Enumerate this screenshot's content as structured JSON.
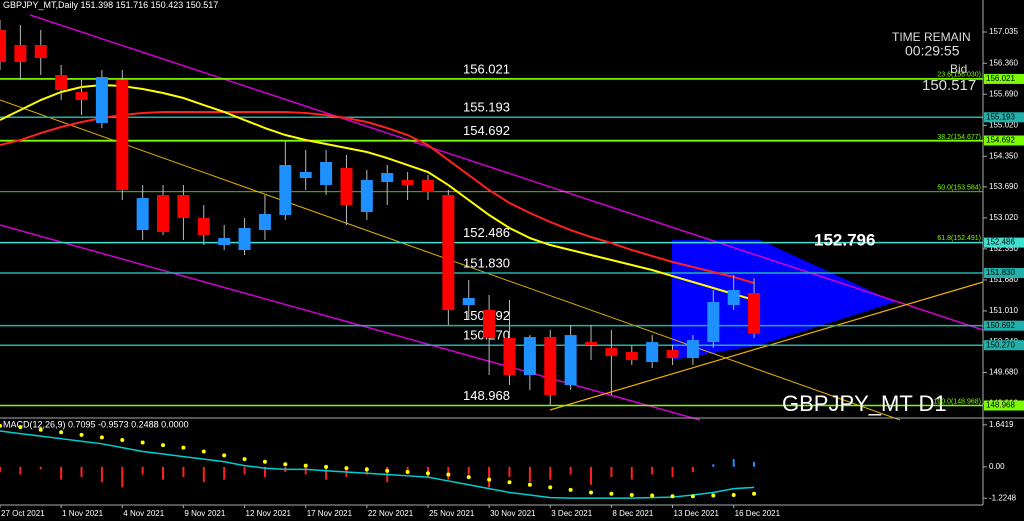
{
  "chart_data": {
    "type": "candlestick",
    "title": "GBPJPY_MT,Daily",
    "time_remain_label": "TIME REMAIN",
    "time_remain": "00:29:55",
    "bid_label": "Bid",
    "watermark": "GBPJPY_MT D1",
    "highlight_label": "152.796",
    "up_color": "#1e90ff",
    "down_color": "#ff0000",
    "categories": [
      "27 Oct 2021",
      null,
      null,
      "1 Nov 2021",
      null,
      null,
      "4 Nov 2021",
      null,
      null,
      "9 Nov 2021",
      null,
      null,
      "12 Nov 2021",
      null,
      null,
      "17 Nov 2021",
      null,
      null,
      "22 Nov 2021",
      null,
      null,
      "25 Nov 2021",
      null,
      null,
      "30 Nov 2021",
      null,
      null,
      "3 Dec 2021",
      null,
      null,
      "8 Dec 2021",
      null,
      null,
      "13 Dec 2021",
      null,
      null,
      "16 Dec 2021",
      null
    ],
    "open": [
      157.078,
      156.754,
      156.754,
      156.106,
      155.739,
      155.069,
      155.998,
      152.758,
      153.514,
      153.514,
      153.018,
      152.434,
      152.326,
      152.758,
      153.082,
      153.881,
      153.73,
      154.097,
      153.147,
      153.795,
      153.838,
      153.838,
      153.514,
      151.138,
      151.03,
      150.425,
      149.626,
      150.447,
      149.41,
      150.338,
      150.209,
      150.123,
      149.907,
      150.166,
      149.993,
      150.338,
      151.138,
      151.398
    ],
    "high": [
      157.294,
      157.186,
      157.078,
      156.322,
      155.998,
      156.214,
      156.214,
      153.73,
      153.73,
      153.73,
      153.298,
      152.866,
      153.018,
      153.514,
      154.702,
      154.486,
      154.486,
      154.378,
      154.054,
      154.162,
      154.011,
      153.946,
      153.622,
      151.678,
      151.354,
      151.246,
      150.49,
      150.598,
      150.706,
      150.706,
      150.598,
      150.274,
      150.49,
      150.274,
      150.49,
      151.462,
      151.786,
      151.716
    ],
    "low": [
      156.214,
      155.998,
      156.106,
      155.566,
      155.242,
      154.958,
      153.406,
      152.542,
      152.65,
      152.542,
      152.434,
      152.326,
      152.218,
      152.542,
      152.974,
      153.622,
      153.514,
      152.866,
      152.974,
      153.298,
      153.406,
      153.406,
      150.706,
      150.814,
      149.626,
      149.41,
      149.302,
      148.978,
      149.302,
      149.95,
      149.194,
      149.842,
      149.777,
      149.842,
      149.842,
      150.209,
      151.03,
      150.423
    ],
    "close": [
      156.387,
      156.387,
      156.473,
      155.782,
      155.566,
      156.063,
      153.622,
      153.449,
      152.715,
      153.018,
      152.65,
      152.585,
      152.801,
      153.104,
      154.162,
      154.011,
      154.227,
      153.298,
      153.838,
      153.989,
      153.73,
      153.579,
      151.03,
      151.289,
      150.425,
      149.626,
      150.447,
      149.194,
      150.49,
      150.274,
      150.036,
      149.95,
      150.338,
      149.993,
      150.382,
      151.203,
      151.462,
      150.517
    ],
    "lines": [
      {
        "color": "#ff2020",
        "values": [
          154.594,
          154.702,
          154.853,
          154.983,
          155.091,
          155.177,
          155.242,
          155.285,
          155.307,
          155.307,
          155.307,
          155.307,
          155.307,
          155.307,
          155.307,
          155.285,
          155.242,
          155.177,
          155.091,
          154.961,
          154.81,
          154.594,
          154.27,
          153.946,
          153.622,
          153.341,
          153.125,
          152.931,
          152.758,
          152.607,
          152.477,
          152.326,
          152.196,
          152.067,
          151.959,
          151.851,
          151.743,
          151.613
        ]
      },
      {
        "color": "#ffff00",
        "values": [
          155.134,
          155.35,
          155.566,
          155.739,
          155.847,
          155.89,
          155.868,
          155.804,
          155.717,
          155.609,
          155.458,
          155.307,
          155.134,
          154.961,
          154.81,
          154.702,
          154.616,
          154.53,
          154.443,
          154.313,
          154.162,
          154.011,
          153.73,
          153.406,
          153.082,
          152.801,
          152.585,
          152.434,
          152.326,
          152.218,
          152.11,
          152.002,
          151.894,
          151.764,
          151.635,
          151.506,
          151.376,
          151.246
        ]
      }
    ],
    "ylim": [
      148.698,
      157.726
    ],
    "yticks": [
      157.035,
      {
        "value": 156.36,
        "label": "156.360"
      },
      {
        "value": 155.69,
        "label": "155.690"
      },
      {
        "value": 155.02,
        "label": "155.020"
      },
      {
        "value": 154.35,
        "label": "154.350"
      },
      {
        "value": 153.69,
        "label": "153.690"
      },
      {
        "value": 153.02,
        "label": "153.020"
      },
      {
        "value": 152.35,
        "label": "152.350"
      },
      {
        "value": 151.68,
        "label": "151.680"
      },
      {
        "value": 151.01,
        "label": "151.010"
      },
      {
        "value": 150.34,
        "label": "150.340"
      },
      {
        "value": 149.68,
        "label": "149.680"
      },
      {
        "value": 149.01,
        "label": "149.010"
      }
    ],
    "levels": [
      156.021,
      155.193,
      154.692,
      152.486,
      {
        "value": 151.83,
        "label": "151.830"
      },
      150.692,
      {
        "value": 150.27,
        "label": "150.270"
      },
      148.968
    ],
    "level_colors": [
      "#7cfc00",
      "#20b2aa",
      "#7cfc00",
      "#40e0d0",
      "#20b2aa",
      "#20b2aa",
      "#20b2aa",
      "#7cfc00"
    ],
    "fib_levels": [
      {
        "value": 156.03,
        "label": "23.6(156.030)"
      },
      {
        "value": 154.677,
        "label": "38.2(154.677)"
      },
      {
        "value": 153.584,
        "label": "50.0(153.584)"
      },
      {
        "value": 152.491,
        "label": "61.8(152.491)"
      },
      {
        "value": 148.968,
        "label": "100.0(148.968)"
      }
    ],
    "fib_color": "#7cfc00",
    "macd": {
      "title": "MACD(12,26,9) 0.7095 -0.9573 0.2488 0.0000",
      "ylim": [
        -1.49,
        1.83
      ],
      "yticks": [
        1.6419,
        {
          "value": 0,
          "label": "0.00"
        },
        -1.2248
      ],
      "histogram": [
        -0.2,
        -0.3,
        -0.1,
        -0.5,
        -0.4,
        -0.6,
        -0.8,
        -0.3,
        -0.5,
        -0.4,
        -0.6,
        -0.5,
        -0.3,
        -0.4,
        -0.2,
        -0.3,
        -0.5,
        -0.4,
        -0.3,
        -0.6,
        -0.2,
        -0.4,
        -0.5,
        -0.3,
        -0.8,
        -0.4,
        -0.6,
        -0.5,
        -0.3,
        -0.7,
        -0.4,
        -0.5,
        -0.3,
        -0.4,
        -0.2,
        0.1,
        0.3,
        0.2
      ],
      "line": [
        1.4,
        1.3,
        1.2,
        1.1,
        1.0,
        0.9,
        0.75,
        0.6,
        0.5,
        0.4,
        0.3,
        0.2,
        0.05,
        -0.05,
        -0.1,
        -0.1,
        -0.15,
        -0.2,
        -0.25,
        -0.3,
        -0.35,
        -0.4,
        -0.55,
        -0.7,
        -0.85,
        -1.0,
        -1.1,
        -1.2,
        -1.22,
        -1.22,
        -1.22,
        -1.22,
        -1.2,
        -1.18,
        -1.1,
        -1.0,
        -0.85,
        -0.8
      ],
      "signal": [
        1.6,
        1.55,
        1.45,
        1.35,
        1.25,
        1.15,
        1.05,
        0.95,
        0.85,
        0.75,
        0.6,
        0.45,
        0.3,
        0.2,
        0.1,
        0.05,
        0.0,
        -0.05,
        -0.1,
        -0.15,
        -0.2,
        -0.25,
        -0.3,
        -0.4,
        -0.5,
        -0.6,
        -0.7,
        -0.8,
        -0.9,
        -1.0,
        -1.05,
        -1.1,
        -1.12,
        -1.15,
        -1.15,
        -1.12,
        -1.1,
        -1.05
      ],
      "line_color": "#00ced1",
      "signal_color": "#ffff00",
      "hist_down_color": "#ff2020",
      "hist_up_color": "#1e90ff"
    }
  }
}
